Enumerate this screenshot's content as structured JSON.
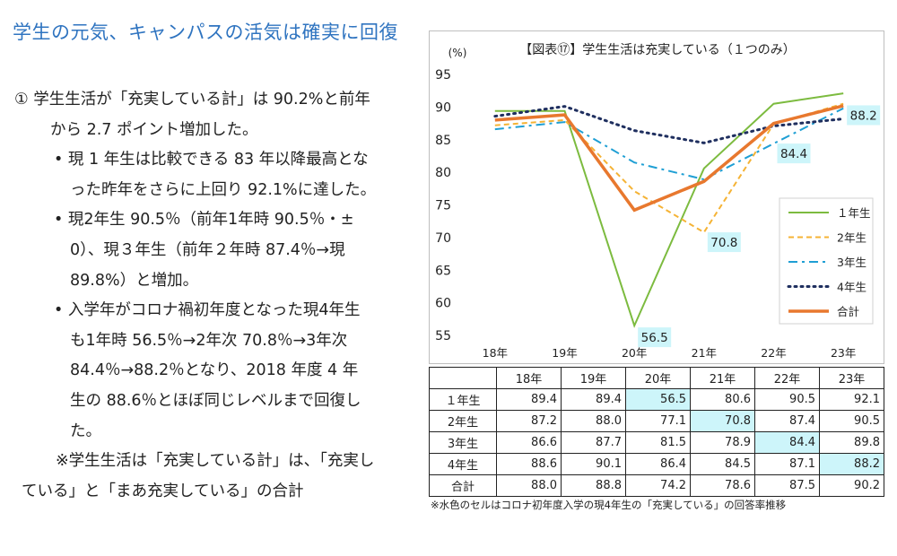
{
  "heading": "学生の元気、キャンパスの活気は確実に回復",
  "text_lines": [
    "①  学生生活が「充実している計」は 90.2%と前年",
    "から 2.7 ポイント増加した。",
    "• 現 1 年生は比較できる 83 年以降最高とな",
    "った昨年をさらに上回り 92.1%に達した。",
    "• 現2年生  90.5％（前年1年時  90.5％・±",
    "0）、現３年生（前年２年時  87.4％→現",
    "89.8%）と増加。",
    "• 入学年がコロナ禍初年度となった現4年生",
    "も1年時  56.5％→2年次  70.8％→3年次",
    "84.4％→88.2％となり、2018  年度  4  年",
    "生の  88.6％とほぼ同じレベルまで回復し",
    "た。",
    "※学生生活は「充実している計」は、「充実し",
    "ている」と「まあ充実している」の合計"
  ],
  "chart_data": {
    "type": "line",
    "title": "【図表⑰】学生生活は充実している（１つのみ）",
    "ylabel": "(%)",
    "ylim": [
      55,
      95
    ],
    "yticks": [
      55,
      60,
      65,
      70,
      75,
      80,
      85,
      90,
      95
    ],
    "categories": [
      "18年",
      "19年",
      "20年",
      "21年",
      "22年",
      "23年"
    ],
    "legend_position": "bottom-right",
    "grid": false,
    "series": [
      {
        "name": "１年生",
        "values": [
          89.4,
          89.4,
          56.5,
          80.6,
          90.5,
          92.1
        ],
        "color": "#7cbb3f",
        "dash": "solid"
      },
      {
        "name": "2年生",
        "values": [
          87.2,
          88.0,
          77.1,
          70.8,
          87.4,
          90.5
        ],
        "color": "#f5b335",
        "dash": "dash"
      },
      {
        "name": "3年生",
        "values": [
          86.6,
          87.7,
          81.5,
          78.9,
          84.4,
          89.8
        ],
        "color": "#1f9fd4",
        "dash": "dashdot"
      },
      {
        "name": "4年生",
        "values": [
          88.6,
          90.1,
          86.4,
          84.5,
          87.1,
          88.2
        ],
        "color": "#1f2f5f",
        "dash": "dot"
      },
      {
        "name": "合計",
        "values": [
          88.0,
          88.8,
          74.2,
          78.6,
          87.5,
          90.2
        ],
        "color": "#e8782e",
        "dash": "solid",
        "thick": true
      }
    ],
    "annotations": [
      {
        "label": "56.5",
        "category": "20年",
        "value": 56.5
      },
      {
        "label": "70.8",
        "category": "21年",
        "value": 70.8
      },
      {
        "label": "84.4",
        "category": "22年",
        "value": 84.4
      },
      {
        "label": "88.2",
        "category": "23年",
        "value": 88.2
      }
    ],
    "annotation_color": "#cdf5fa"
  },
  "table": {
    "headers": [
      "18年",
      "19年",
      "20年",
      "21年",
      "22年",
      "23年"
    ],
    "rows": [
      {
        "label": "１年生",
        "cells": [
          "89.4",
          "89.4",
          "56.5",
          "80.6",
          "90.5",
          "92.1"
        ],
        "highlight": [
          2
        ]
      },
      {
        "label": "2年生",
        "cells": [
          "87.2",
          "88.0",
          "77.1",
          "70.8",
          "87.4",
          "90.5"
        ],
        "highlight": [
          3
        ]
      },
      {
        "label": "3年生",
        "cells": [
          "86.6",
          "87.7",
          "81.5",
          "78.9",
          "84.4",
          "89.8"
        ],
        "highlight": [
          4
        ]
      },
      {
        "label": "4年生",
        "cells": [
          "88.6",
          "90.1",
          "86.4",
          "84.5",
          "87.1",
          "88.2"
        ],
        "highlight": [
          5
        ]
      },
      {
        "label": "合計",
        "cells": [
          "88.0",
          "88.8",
          "74.2",
          "78.6",
          "87.5",
          "90.2"
        ],
        "highlight": []
      }
    ]
  },
  "footnote": "※水色のセルはコロナ初年度入学の現4年生の「充実している」の回答率推移"
}
